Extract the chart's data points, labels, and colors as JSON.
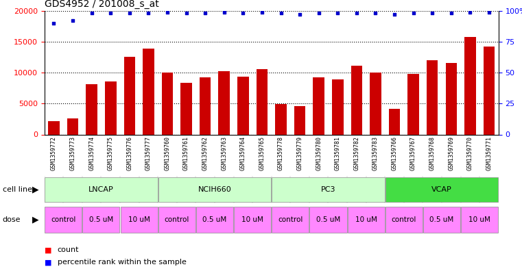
{
  "title": "GDS4952 / 201008_s_at",
  "samples": [
    "GSM1359772",
    "GSM1359773",
    "GSM1359774",
    "GSM1359775",
    "GSM1359776",
    "GSM1359777",
    "GSM1359760",
    "GSM1359761",
    "GSM1359762",
    "GSM1359763",
    "GSM1359764",
    "GSM1359765",
    "GSM1359778",
    "GSM1359779",
    "GSM1359780",
    "GSM1359781",
    "GSM1359782",
    "GSM1359783",
    "GSM1359766",
    "GSM1359767",
    "GSM1359768",
    "GSM1359769",
    "GSM1359770",
    "GSM1359771"
  ],
  "counts": [
    2200,
    2600,
    8100,
    8600,
    12600,
    13900,
    10000,
    8300,
    9200,
    10200,
    9400,
    10600,
    4900,
    4600,
    9200,
    8900,
    11100,
    10000,
    4100,
    9800,
    12000,
    11600,
    15800,
    14200
  ],
  "percentile_ranks": [
    90,
    92,
    98,
    98,
    98,
    98,
    99,
    98,
    98,
    99,
    98,
    99,
    98,
    97,
    98,
    98,
    98,
    98,
    97,
    98,
    98,
    98,
    99,
    99
  ],
  "cell_lines": [
    {
      "name": "LNCAP",
      "start": 0,
      "end": 6,
      "color": "#CCFFCC"
    },
    {
      "name": "NCIH660",
      "start": 6,
      "end": 12,
      "color": "#CCFFCC"
    },
    {
      "name": "PC3",
      "start": 12,
      "end": 18,
      "color": "#CCFFCC"
    },
    {
      "name": "VCAP",
      "start": 18,
      "end": 24,
      "color": "#44DD44"
    }
  ],
  "doses": [
    {
      "label": "control",
      "start": 0,
      "end": 2,
      "color": "#FF88FF"
    },
    {
      "label": "0.5 uM",
      "start": 2,
      "end": 4,
      "color": "#FF88FF"
    },
    {
      "label": "10 uM",
      "start": 4,
      "end": 6,
      "color": "#FF88FF"
    },
    {
      "label": "control",
      "start": 6,
      "end": 8,
      "color": "#FF88FF"
    },
    {
      "label": "0.5 uM",
      "start": 8,
      "end": 10,
      "color": "#FF88FF"
    },
    {
      "label": "10 uM",
      "start": 10,
      "end": 12,
      "color": "#FF88FF"
    },
    {
      "label": "control",
      "start": 12,
      "end": 14,
      "color": "#FF88FF"
    },
    {
      "label": "0.5 uM",
      "start": 14,
      "end": 16,
      "color": "#FF88FF"
    },
    {
      "label": "10 uM",
      "start": 16,
      "end": 18,
      "color": "#FF88FF"
    },
    {
      "label": "control",
      "start": 18,
      "end": 20,
      "color": "#FF88FF"
    },
    {
      "label": "0.5 uM",
      "start": 20,
      "end": 22,
      "color": "#FF88FF"
    },
    {
      "label": "10 uM",
      "start": 22,
      "end": 24,
      "color": "#FF88FF"
    }
  ],
  "bar_color": "#CC0000",
  "dot_color": "#0000CC",
  "ylim_left": [
    0,
    20000
  ],
  "ylim_right": [
    0,
    100
  ],
  "yticks_left": [
    0,
    5000,
    10000,
    15000,
    20000
  ],
  "yticks_right": [
    0,
    25,
    50,
    75,
    100
  ],
  "ytick_labels_right": [
    "0",
    "25",
    "50",
    "75",
    "100%"
  ],
  "tick_label_bg": "#C8C8C8",
  "cell_line_label": "cell line",
  "dose_label": "dose",
  "legend_count": "count",
  "legend_percentile": "percentile rank within the sample"
}
